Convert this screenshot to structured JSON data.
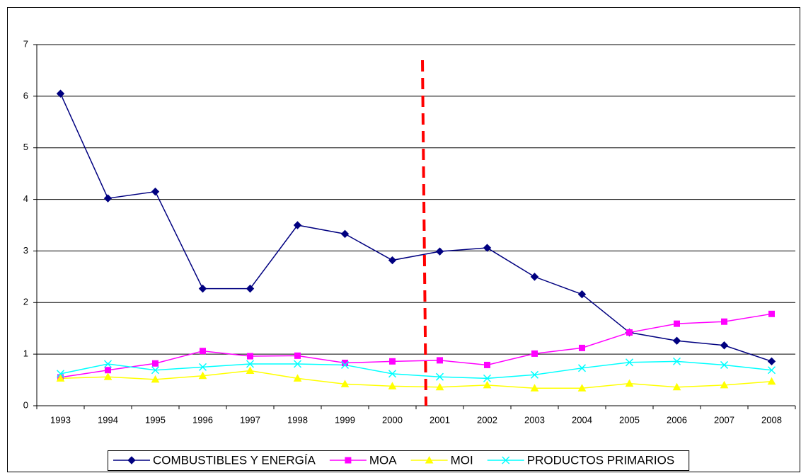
{
  "chart_data": {
    "type": "line",
    "categories": [
      "1993",
      "1994",
      "1995",
      "1996",
      "1997",
      "1998",
      "1999",
      "2000",
      "2001",
      "2002",
      "2003",
      "2004",
      "2005",
      "2006",
      "2007",
      "2008"
    ],
    "series": [
      {
        "name": "COMBUSTIBLES Y ENERGÍA",
        "color": "#000080",
        "marker": "diamond",
        "values": [
          6.05,
          4.02,
          4.15,
          2.27,
          2.27,
          3.5,
          3.33,
          2.82,
          2.99,
          3.06,
          2.5,
          2.16,
          1.42,
          1.26,
          1.17,
          0.86
        ]
      },
      {
        "name": "MOA",
        "color": "#ff00ff",
        "marker": "square",
        "values": [
          0.55,
          0.69,
          0.82,
          1.06,
          0.96,
          0.97,
          0.83,
          0.86,
          0.88,
          0.79,
          1.01,
          1.12,
          1.42,
          1.59,
          1.63,
          1.78
        ]
      },
      {
        "name": "MOI",
        "color": "#ffff00",
        "marker": "triangle",
        "values": [
          0.53,
          0.56,
          0.51,
          0.58,
          0.68,
          0.53,
          0.42,
          0.38,
          0.36,
          0.4,
          0.34,
          0.34,
          0.43,
          0.36,
          0.4,
          0.47
        ]
      },
      {
        "name": "PRODUCTOS PRIMARIOS",
        "color": "#00ffff",
        "marker": "x",
        "values": [
          0.62,
          0.81,
          0.69,
          0.75,
          0.81,
          0.81,
          0.79,
          0.62,
          0.56,
          0.53,
          0.6,
          0.73,
          0.84,
          0.86,
          0.79,
          0.69
        ]
      }
    ],
    "ylim": [
      0,
      7
    ],
    "yticks": [
      0,
      1,
      2,
      3,
      4,
      5,
      6,
      7
    ],
    "grid": true,
    "legend": "bottom"
  }
}
